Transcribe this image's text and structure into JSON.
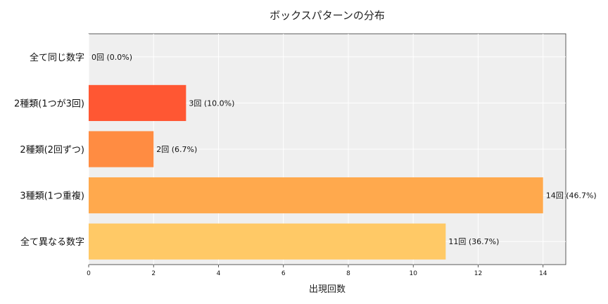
{
  "chart_data": {
    "type": "bar",
    "orientation": "horizontal",
    "title": "ボックスパターンの分布",
    "xlabel": "出現回数",
    "ylabel": "",
    "categories": [
      "全て同じ数字",
      "2種類(1つが3回)",
      "2種類(2回ずつ)",
      "3種類(1つ重複)",
      "全て異なる数字"
    ],
    "values": [
      0,
      3,
      2,
      14,
      11
    ],
    "data_labels": [
      "0回 (0.0%)",
      "3回 (10.0%)",
      "2回 (6.7%)",
      "14回 (46.7%)",
      "11回 (36.7%)"
    ],
    "colors": [
      "#FF5733",
      "#FF5733",
      "#FF8C42",
      "#FFA94D",
      "#FFC966"
    ],
    "xlim": [
      0,
      14.7
    ],
    "xticks": [
      0,
      2,
      4,
      6,
      8,
      10,
      12,
      14
    ],
    "grid": true,
    "background": "#EFEFEF"
  }
}
